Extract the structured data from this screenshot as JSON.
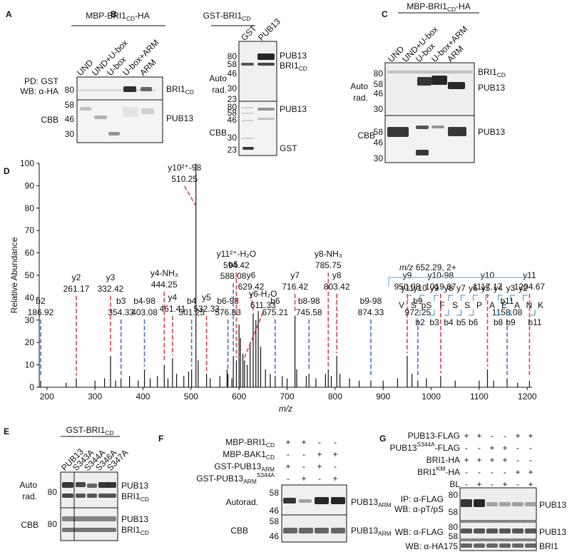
{
  "panels": {
    "A": {
      "letter": "A",
      "construct": [
        "MBP-BRI1",
        {
          "sub": "CD"
        },
        "-HA"
      ],
      "lanes": [
        "UND",
        "UND+U-box",
        "U-box",
        "U-box+ARM",
        "ARM"
      ],
      "probe": [
        "PD: GST",
        "WB: α-HA"
      ],
      "stain": "CBB",
      "markers_top": [
        80
      ],
      "markers_bottom": [
        58,
        46,
        30
      ],
      "targets_top": [
        [
          "BRI1",
          {
            "sub": "CD"
          }
        ]
      ],
      "targets_bottom": [
        [
          "PUB13"
        ]
      ]
    },
    "B": {
      "letter": "B",
      "construct": [
        "GST-BRI1",
        {
          "sub": "CD"
        }
      ],
      "lanes": [
        "GST",
        "PUB13"
      ],
      "probe": [
        "Auto",
        "rad."
      ],
      "stain": "CBB",
      "markers_top": [
        80,
        58,
        46,
        30,
        23
      ],
      "markers_bottom": [
        80,
        58,
        46,
        30,
        23
      ],
      "targets_top": [
        [
          "PUB13"
        ],
        [
          "BRI1",
          {
            "sub": "CD"
          }
        ]
      ],
      "targets_bottom": [
        [
          "PUB13"
        ],
        [
          "GST"
        ]
      ]
    },
    "C": {
      "letter": "C",
      "construct": [
        "MBP-BRI1",
        {
          "sub": "CD"
        },
        "-HA"
      ],
      "lanes": [
        "UND",
        "UND+U-box",
        "U-box",
        "U-box+ARM",
        "ARM"
      ],
      "probe": [
        "Auto",
        "rad."
      ],
      "stain": "CBB",
      "markers_top": [
        80,
        58,
        46,
        30
      ],
      "markers_bottom": [
        58,
        46,
        30
      ],
      "targets_top": [
        [
          "BRI1",
          {
            "sub": "CD"
          }
        ],
        [
          "PUB13"
        ]
      ],
      "targets_bottom": [
        [
          "PUB13"
        ]
      ]
    },
    "D": {
      "letter": "D"
    },
    "E": {
      "letter": "E",
      "construct": [
        "GST-BRI1",
        {
          "sub": "CD"
        }
      ],
      "lanes": [
        "PUB13",
        "S343A",
        "S344A",
        "S346A",
        "S347A"
      ],
      "probe": [
        "Auto",
        "rad."
      ],
      "stain": "CBB",
      "markers_top": [
        80
      ],
      "markers_bottom": [
        80
      ],
      "targets_top": [
        [
          "PUB13"
        ],
        [
          "BRI1",
          {
            "sub": "CD"
          }
        ]
      ],
      "targets_bottom": [
        [
          "PUB13"
        ],
        [
          "BRI1",
          {
            "sub": "CD"
          }
        ]
      ]
    },
    "F": {
      "letter": "F",
      "rows": [
        {
          "label": [
            "MBP-BRI1",
            {
              "sub": "CD"
            }
          ],
          "signs": [
            "+",
            "+",
            "-",
            "-"
          ]
        },
        {
          "label": [
            "MBP-BAK1",
            {
              "sub": "CD"
            }
          ],
          "signs": [
            "-",
            "-",
            "+",
            "+"
          ]
        },
        {
          "label": [
            "GST-PUB13",
            {
              "sub": "ARM"
            }
          ],
          "signs": [
            "+",
            "-",
            "+",
            "-"
          ]
        },
        {
          "label": [
            "GST-PUB13",
            {
              "sub": "ARM"
            },
            {
              "sup": "S344A"
            }
          ],
          "signs": [
            "-",
            "+",
            "-",
            "+"
          ]
        }
      ],
      "probe": "Autorad.",
      "stain": "CBB",
      "markers_top": [
        58,
        46
      ],
      "markers_bottom": [
        58,
        46
      ],
      "targets_top": [
        [
          "PUB13",
          {
            "sub": "ARM"
          }
        ]
      ],
      "targets_bottom": [
        [
          "PUB13",
          {
            "sub": "ARM"
          }
        ]
      ]
    },
    "G": {
      "letter": "G",
      "rows": [
        {
          "label": [
            "PUB13-FLAG"
          ],
          "signs": [
            "+",
            "+",
            "-",
            "-",
            "+",
            "+"
          ]
        },
        {
          "label": [
            "PUB13",
            {
              "sup": "S344A"
            },
            "-FLAG"
          ],
          "signs": [
            "-",
            "-",
            "+",
            "+",
            "-",
            "-"
          ]
        },
        {
          "label": [
            "BRI1-HA"
          ],
          "signs": [
            "+",
            "+",
            "+",
            "+",
            "-",
            "-"
          ]
        },
        {
          "label": [
            "BRI1",
            {
              "sup": "KM"
            },
            "-HA"
          ],
          "signs": [
            "-",
            "-",
            "-",
            "-",
            "+",
            "+"
          ]
        },
        {
          "label": [
            "BL"
          ],
          "signs": [
            "-",
            "+",
            "-",
            "+",
            "-",
            "+"
          ]
        }
      ],
      "blots": [
        {
          "probe": [
            "IP: α-FLAG",
            "WB: α-pT/pS"
          ],
          "markers": [
            80,
            58
          ],
          "target": [
            "PUB13"
          ]
        },
        {
          "probe": [
            "WB: α-FLAG"
          ],
          "markers": [
            80,
            58
          ],
          "target": [
            "PUB13"
          ]
        },
        {
          "probe": [
            "WB: α-HA"
          ],
          "markers": [
            175
          ],
          "target": [
            "BRI1"
          ]
        }
      ]
    }
  },
  "chart_data": {
    "type": "stem",
    "xlabel": "m/z",
    "ylabel": "Relative Abundance",
    "xlim": [
      184,
      1210
    ],
    "ylim": [
      0,
      100
    ],
    "xticks": [
      200,
      300,
      400,
      500,
      600,
      700,
      800,
      900,
      1000,
      1100,
      1200
    ],
    "yticks": [
      0,
      10,
      20,
      30,
      40,
      50,
      60,
      70,
      80,
      90,
      100
    ],
    "color": "#111111",
    "x": [
      240,
      300,
      320,
      343,
      372,
      390,
      415,
      430,
      452,
      470,
      485,
      495,
      515,
      540,
      560,
      575,
      585,
      600,
      603,
      608,
      617,
      623,
      635,
      640,
      645,
      655,
      665,
      690,
      700,
      720,
      740,
      760,
      780,
      792,
      810,
      830,
      850,
      900,
      930,
      960,
      990,
      1050,
      1100,
      1130,
      1180
    ],
    "values": [
      2,
      3,
      4,
      3,
      5,
      3,
      4,
      5,
      4,
      6,
      5,
      7,
      12,
      4,
      5,
      8,
      4,
      28,
      22,
      15,
      10,
      20,
      30,
      34,
      18,
      8,
      6,
      5,
      4,
      8,
      5,
      4,
      6,
      5,
      6,
      4,
      3,
      3,
      4,
      6,
      4,
      3,
      3,
      3,
      2
    ],
    "ions": [
      {
        "name": "b2",
        "mz": 186.92,
        "intensity": 3,
        "color": "#2f55c8"
      },
      {
        "name": "y2",
        "mz": 261.17,
        "intensity": 4,
        "color": "#e0202e"
      },
      {
        "name": "y3",
        "mz": 332.42,
        "intensity": 14,
        "color": "#e0202e"
      },
      {
        "name": "b3",
        "mz": 354.33,
        "intensity": 4,
        "color": "#2f55c8"
      },
      {
        "name": "b4-98",
        "mz": 403.08,
        "intensity": 8,
        "color": "#2f55c8"
      },
      {
        "name": "y4-NH₃",
        "mz": 444.25,
        "intensity": 10,
        "color": "#e0202e"
      },
      {
        "name": "y4",
        "mz": 461.41,
        "intensity": 13,
        "color": "#e0202e"
      },
      {
        "name": "b4",
        "mz": 501.25,
        "intensity": 8,
        "color": "#2f55c8"
      },
      {
        "name": "y10²⁺-98",
        "mz": 510.25,
        "intensity": 100,
        "color": "#e0202e"
      },
      {
        "name": "y5",
        "mz": 532.33,
        "intensity": 6,
        "color": "#e0202e"
      },
      {
        "name": "b6-98",
        "mz": 576.83,
        "intensity": 6,
        "color": "#2f55c8"
      },
      {
        "name": "b5",
        "mz": 588.08,
        "intensity": 14,
        "color": "#2f55c8"
      },
      {
        "name": "y11²⁺-H₂O",
        "mz": 594.42,
        "intensity": 12,
        "color": "#e0202e"
      },
      {
        "name": "y6",
        "mz": 629.42,
        "intensity": 33,
        "color": "#e0202e"
      },
      {
        "name": "y6-H₂O",
        "mz": 611.33,
        "intensity": 12,
        "color": "#e0202e"
      },
      {
        "name": "b6",
        "mz": 675.21,
        "intensity": 5,
        "color": "#2f55c8"
      },
      {
        "name": "y7",
        "mz": 716.42,
        "intensity": 32,
        "color": "#e0202e"
      },
      {
        "name": "b8-98",
        "mz": 745.58,
        "intensity": 6,
        "color": "#2f55c8"
      },
      {
        "name": "y8-NH₃",
        "mz": 785.75,
        "intensity": 8,
        "color": "#e0202e"
      },
      {
        "name": "y8",
        "mz": 803.42,
        "intensity": 14,
        "color": "#e0202e"
      },
      {
        "name": "b9-98",
        "mz": 874.33,
        "intensity": 3,
        "color": "#2f55c8"
      },
      {
        "name": "y9",
        "mz": 950.08,
        "intensity": 14,
        "color": "#e0202e"
      },
      {
        "name": "b9",
        "mz": 972.25,
        "intensity": 3,
        "color": "#2f55c8"
      },
      {
        "name": "y10-98",
        "mz": 1019.67,
        "intensity": 5,
        "color": "#e0202e"
      },
      {
        "name": "y10",
        "mz": 1117.17,
        "intensity": 8,
        "color": "#e0202e"
      },
      {
        "name": "b11",
        "mz": 1158.08,
        "intensity": 4,
        "color": "#2f55c8"
      },
      {
        "name": "y11",
        "mz": 1204.67,
        "intensity": 3,
        "color": "#e0202e"
      }
    ],
    "inset": {
      "precursor": [
        {
          "i": "m/z"
        },
        " 652.29, 2+"
      ],
      "sequence": [
        "V",
        "S",
        "pS",
        "F",
        "S",
        "S",
        "P",
        "A",
        "E",
        "A",
        "N",
        "K"
      ],
      "y_ions": [
        "y11",
        "y10",
        "y9",
        "y8",
        "y7",
        "y6",
        "y5",
        "y4",
        "y3",
        "y2"
      ],
      "b_ions": [
        "b2",
        "b3",
        "b4",
        "b5",
        "b6",
        "b8",
        "b9",
        "b11"
      ],
      "y_color": "#e0202e",
      "b_color": "#2f55c8"
    }
  }
}
